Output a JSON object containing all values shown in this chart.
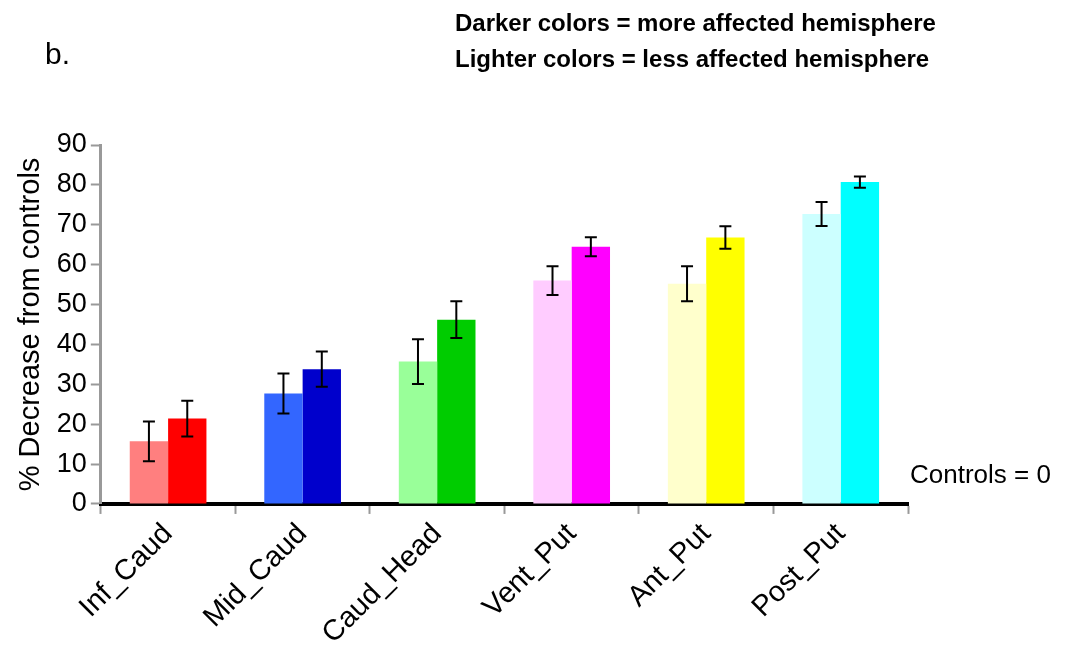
{
  "chart_data": {
    "type": "bar",
    "ylabel": "% Decrease from controls",
    "categories": [
      "Inf_Caud",
      "Mid_Caud",
      "Caud_Head",
      "Vent_Put",
      "Ant_Put",
      "Post_Put"
    ],
    "series": [
      {
        "colors": [
          "#ff7f7f",
          "#3366ff",
          "#99ff99",
          "#ffccff",
          "#ffffcc",
          "#ccffff"
        ],
        "values": [
          15.7,
          27.7,
          35.7,
          56,
          55.2,
          72.7
        ],
        "errors": [
          5,
          5,
          5.6,
          3.6,
          4.4,
          3
        ]
      },
      {
        "colors": [
          "#ff0000",
          "#0000cc",
          "#00cc00",
          "#ff00ff",
          "#ffff00",
          "#00ffff"
        ],
        "values": [
          21.4,
          33.8,
          46.2,
          64.5,
          66.8,
          80.7
        ],
        "errors": [
          4.5,
          4.4,
          4.6,
          2.4,
          2.8,
          1.4
        ]
      }
    ],
    "ylim": [
      0,
      90
    ],
    "yticks": [
      0,
      10,
      20,
      30,
      40,
      50,
      60,
      70,
      80,
      90
    ],
    "grid": false,
    "legend": false,
    "annotations": [
      "b.",
      "Darker colors = more affected hemisphere",
      "Lighter colors = less affected hemisphere",
      "Controls = 0"
    ]
  }
}
